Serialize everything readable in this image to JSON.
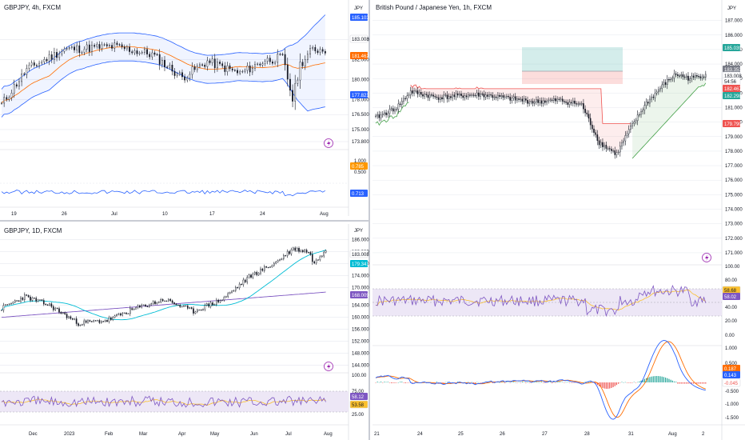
{
  "colors": {
    "up": "#26a69a",
    "down": "#ef5350",
    "bb_band": "#2962ff",
    "bb_basis": "#ff6d00",
    "ma_fast": "#00bcd4",
    "ma_slow": "#7e57c2",
    "rsi_line": "#7e57c2",
    "rsi_ma": "#fbc02d",
    "rsi_fill": "#ede7f6",
    "macd_line": "#2962ff",
    "signal_line": "#ff6d00",
    "supertrend_down": "#ef5350",
    "supertrend_up": "#43a047",
    "grid": "#e0e3eb",
    "text": "#131722"
  },
  "panel_4h": {
    "title": "GBPJPY, 4h, FXCM",
    "currency": "JPY",
    "price_axis": [
      "184.000",
      "182.000",
      "180.000",
      "178.000",
      "176.500",
      "175.000",
      "173.800"
    ],
    "price_tags": [
      {
        "text": "185.103",
        "color": "#2962ff"
      },
      {
        "text": "183.008",
        "color": "#ffffff",
        "fg": "#131722"
      },
      {
        "text": "181.462",
        "color": "#ff6d00"
      },
      {
        "text": "177.821",
        "color": "#2962ff"
      }
    ],
    "osc_axis": [
      "1.000",
      "0.500"
    ],
    "osc_tags": [
      {
        "text": "0.785",
        "color": "#ff9800"
      },
      {
        "text": "0.713",
        "color": "#2962ff"
      }
    ],
    "time_axis": [
      "19",
      "26",
      "Jul",
      "10",
      "17",
      "24",
      "Aug"
    ],
    "icon": "lightning-icon"
  },
  "panel_1h": {
    "title": "British Pound / Japanese Yen, 1h, FXCM",
    "currency": "JPY",
    "price_axis": [
      "187.000",
      "186.000",
      "185.000",
      "184.000",
      "183.000",
      "182.000",
      "181.000",
      "180.000",
      "179.000",
      "178.000",
      "177.000",
      "176.000",
      "175.000",
      "174.000",
      "173.000",
      "172.000",
      "171.000"
    ],
    "price_tags": [
      {
        "text": "185.039",
        "color": "#26a69a"
      },
      {
        "text": "183.353",
        "color": "#787b86"
      },
      {
        "text": "183.008",
        "color": "#ffffff",
        "fg": "#131722"
      },
      {
        "text": "54:56",
        "color": "#ffffff",
        "fg": "#131722"
      },
      {
        "text": "182.467",
        "color": "#ef5350"
      },
      {
        "text": "182.298",
        "color": "#26a69a"
      },
      {
        "text": "179.790",
        "color": "#ef5350"
      }
    ],
    "rsi_axis": [
      "100.00",
      "80.00",
      "60.00",
      "40.00",
      "20.00",
      "0.00"
    ],
    "rsi_tags": [
      {
        "text": "58.68",
        "color": "#fbc02d",
        "fg": "#131722"
      },
      {
        "text": "58.02",
        "color": "#7e57c2"
      }
    ],
    "macd_axis": [
      "1.000",
      "0.500",
      "-0.500",
      "-1.000",
      "-1.500"
    ],
    "macd_tags": [
      {
        "text": "0.187",
        "color": "#ff6d00"
      },
      {
        "text": "0.143",
        "color": "#2962ff"
      },
      {
        "text": "-0.045",
        "color": "#ffffff",
        "fg": "#ef5350"
      }
    ],
    "time_axis": [
      "21",
      "24",
      "25",
      "26",
      "27",
      "28",
      "31",
      "Aug",
      "2"
    ],
    "icon": "lightning-icon"
  },
  "panel_1d": {
    "title": "GBPJPY, 1D, FXCM",
    "currency": "JPY",
    "price_axis": [
      "186.000",
      "182.000",
      "178.000",
      "174.000",
      "170.000",
      "164.000",
      "160.000",
      "156.000",
      "152.000",
      "148.000",
      "144.000"
    ],
    "price_tags": [
      {
        "text": "183.008",
        "color": "#ffffff",
        "fg": "#131722"
      },
      {
        "text": "179.341",
        "color": "#00bcd4"
      },
      {
        "text": "168.009",
        "color": "#7e57c2"
      }
    ],
    "rsi_axis": [
      "100.00",
      "75.00",
      "25.00"
    ],
    "rsi_tags": [
      {
        "text": "58.12",
        "color": "#7e57c2"
      },
      {
        "text": "53.58",
        "color": "#fbc02d",
        "fg": "#131722"
      }
    ],
    "time_axis": [
      "Dec",
      "2023",
      "Feb",
      "Mar",
      "Apr",
      "May",
      "Jun",
      "Jul",
      "Aug"
    ],
    "icon": "lightning-icon"
  }
}
